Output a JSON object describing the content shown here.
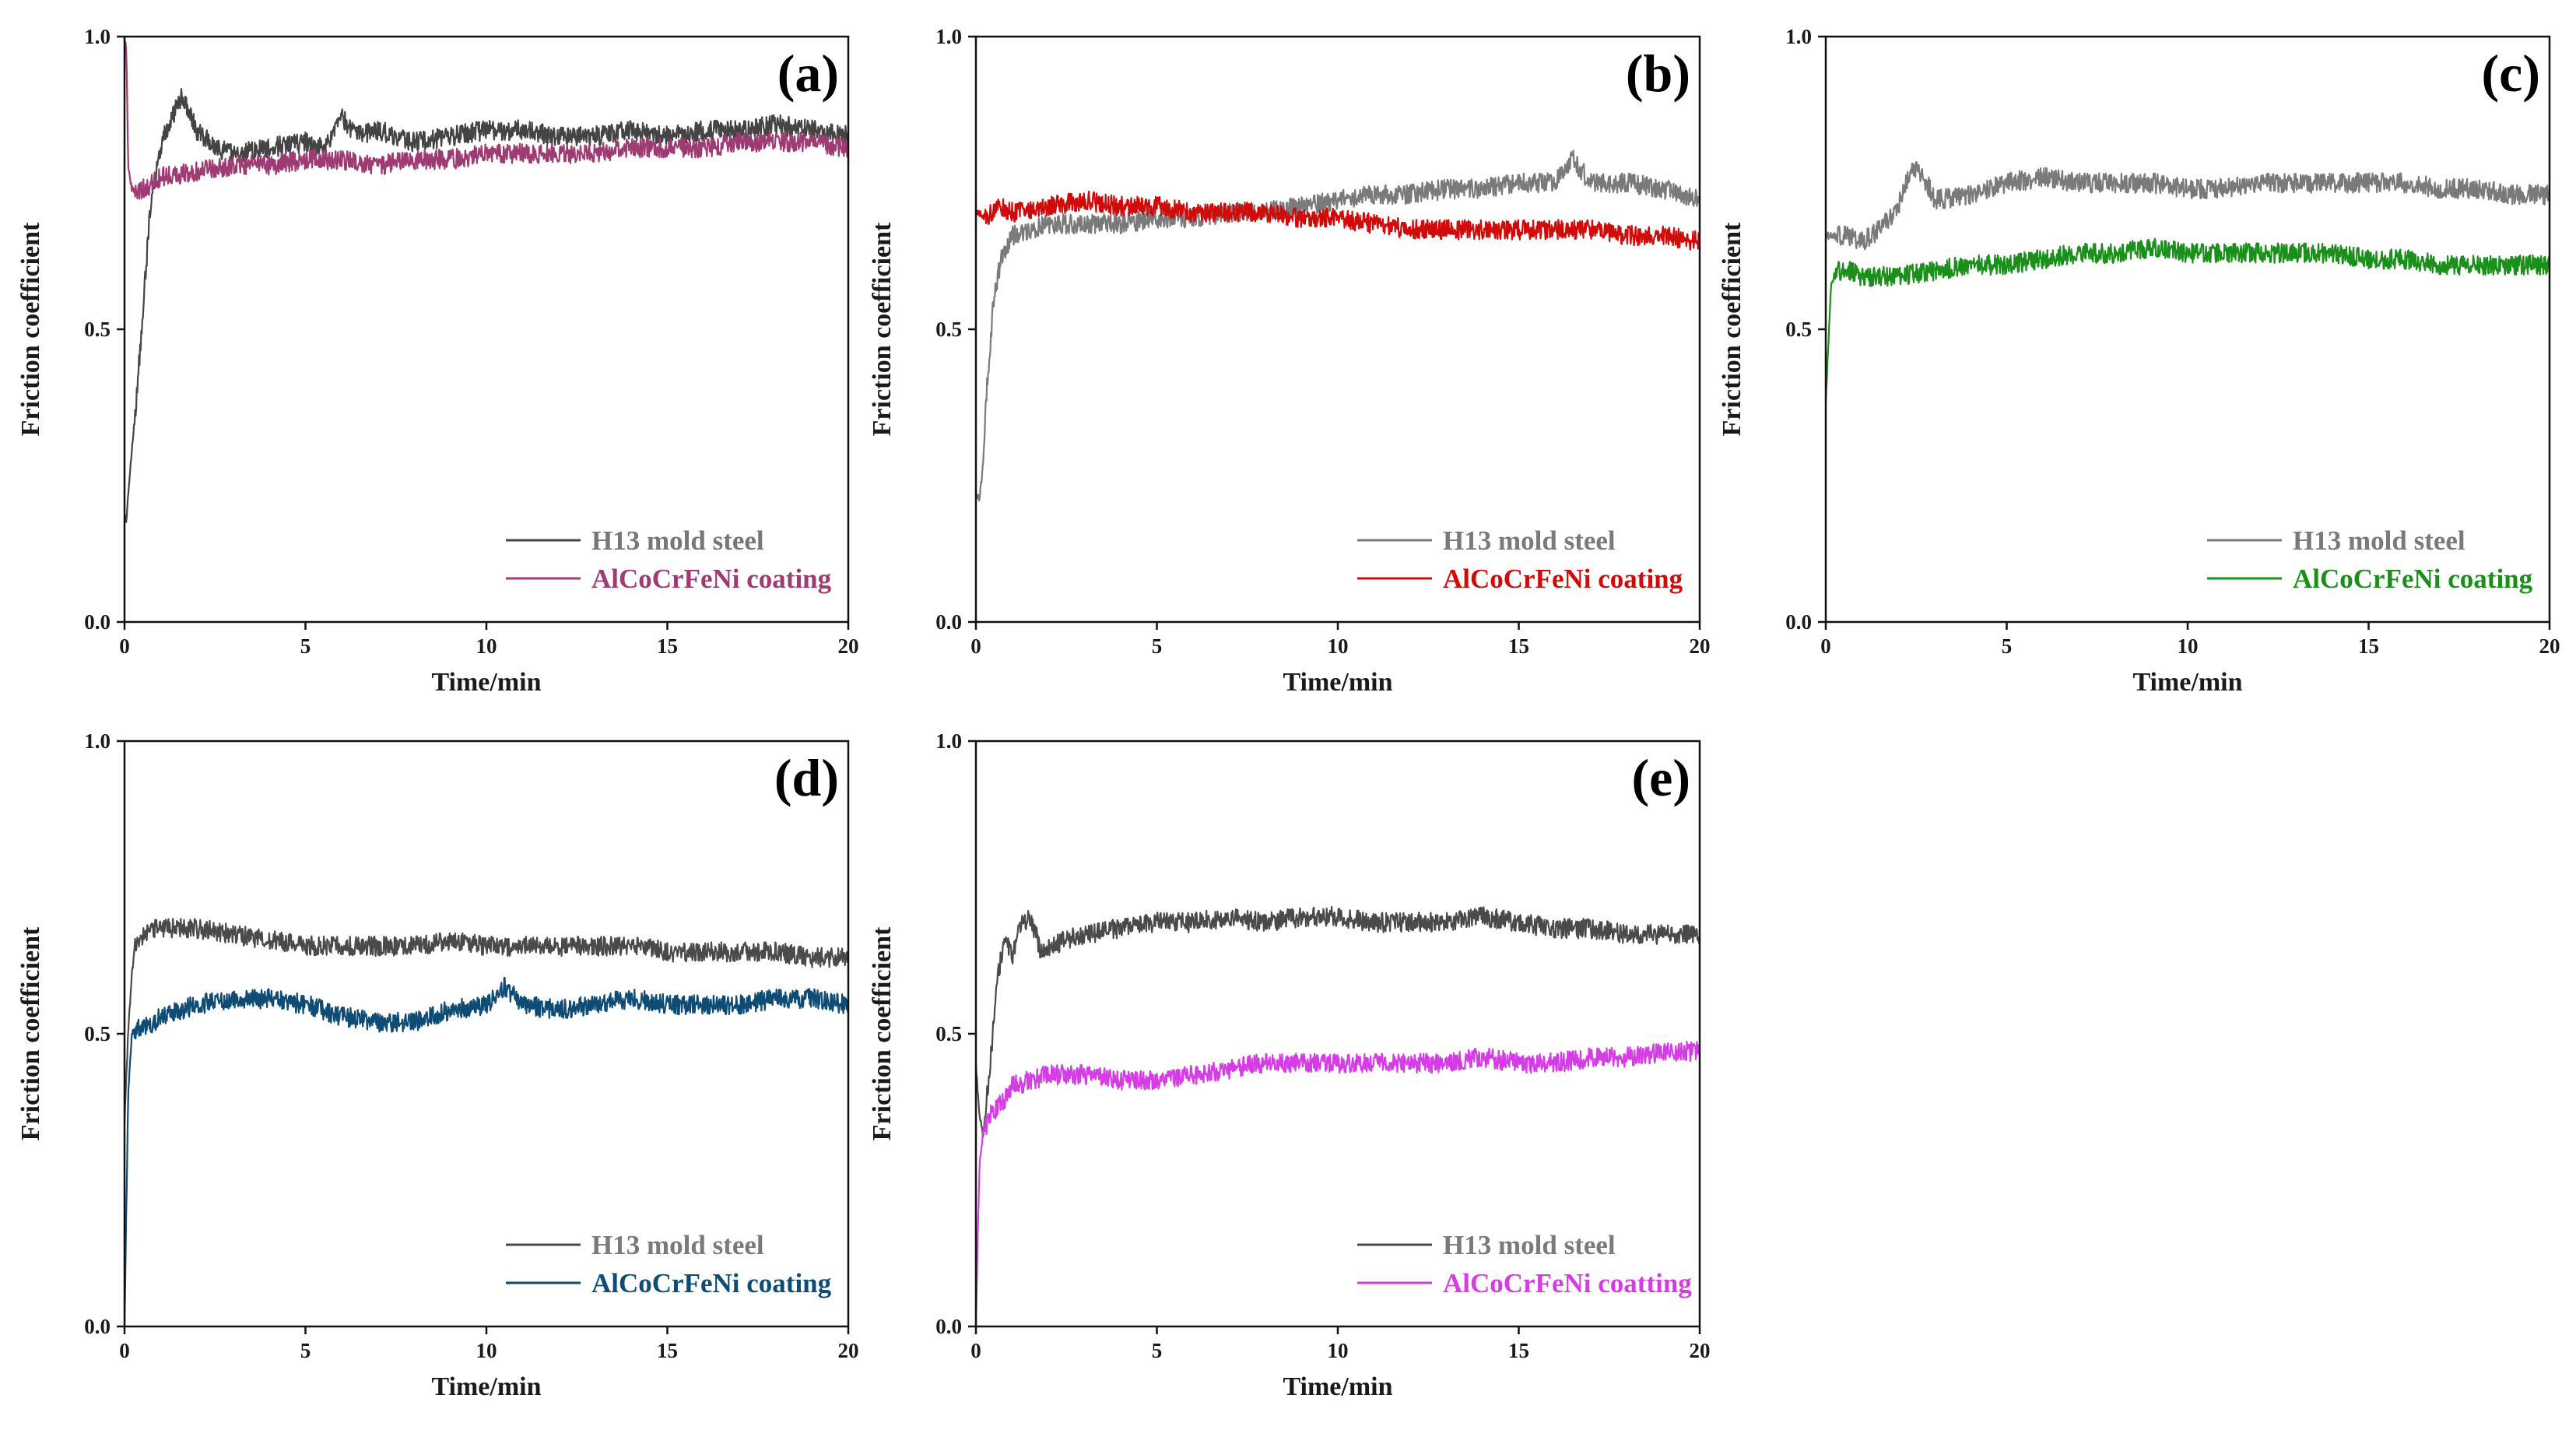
{
  "figure": {
    "chart_data": [
      {
        "type": "line",
        "panel_label": "(a)",
        "xlabel": "Time/min",
        "ylabel": "Friction coefficient",
        "xlim": [
          0,
          20
        ],
        "ylim": [
          0.0,
          1.0
        ],
        "x_ticks": [
          "0",
          "5",
          "10",
          "15",
          "20"
        ],
        "y_ticks": [
          "0.0",
          "0.5",
          "1.0"
        ],
        "legend_position": "bottom-right",
        "series": [
          {
            "name": "H13 mold steel",
            "color": "#444444",
            "label_color": "#777777",
            "x": [
              0,
              0.05,
              0.15,
              0.3,
              0.5,
              0.7,
              0.9,
              1.1,
              1.3,
              1.6,
              1.8,
              2.0,
              2.5,
              3,
              4,
              5,
              5.5,
              6,
              6.5,
              7,
              8,
              9,
              10,
              11,
              12,
              13,
              14,
              15,
              16,
              17,
              18,
              19,
              20
            ],
            "values": [
              0.18,
              0.17,
              0.26,
              0.36,
              0.52,
              0.7,
              0.78,
              0.83,
              0.86,
              0.9,
              0.87,
              0.84,
              0.81,
              0.8,
              0.81,
              0.82,
              0.81,
              0.86,
              0.83,
              0.84,
              0.82,
              0.83,
              0.84,
              0.84,
              0.83,
              0.83,
              0.84,
              0.83,
              0.84,
              0.84,
              0.85,
              0.84,
              0.83
            ]
          },
          {
            "name": "AlCoCrFeNi coating",
            "color": "#9e3b72",
            "label_color": "#9e3b72",
            "x": [
              0,
              0.05,
              0.1,
              0.2,
              0.3,
              0.5,
              0.8,
              1,
              2,
              3,
              4,
              5,
              6,
              7,
              8,
              9,
              10,
              11,
              12,
              13,
              14,
              15,
              16,
              17,
              18,
              19,
              20
            ],
            "values": [
              1.0,
              0.98,
              0.78,
              0.74,
              0.73,
              0.74,
              0.75,
              0.76,
              0.77,
              0.78,
              0.78,
              0.79,
              0.79,
              0.78,
              0.79,
              0.79,
              0.8,
              0.8,
              0.8,
              0.8,
              0.81,
              0.81,
              0.81,
              0.82,
              0.82,
              0.82,
              0.81
            ]
          }
        ]
      },
      {
        "type": "line",
        "panel_label": "(b)",
        "xlabel": "Time/min",
        "ylabel": "Friction coefficient",
        "xlim": [
          0,
          20
        ],
        "ylim": [
          0.0,
          1.0
        ],
        "x_ticks": [
          "0",
          "5",
          "10",
          "15",
          "20"
        ],
        "y_ticks": [
          "0.0",
          "0.5",
          "1.0"
        ],
        "legend_position": "bottom-right",
        "series": [
          {
            "name": "H13 mold steel",
            "color": "#7a7a7a",
            "label_color": "#7a7a7a",
            "x": [
              0,
              0.1,
              0.2,
              0.3,
              0.4,
              0.5,
              0.7,
              1,
              1.5,
              2,
              3,
              4,
              5,
              6,
              7,
              8,
              9,
              10,
              11,
              12,
              13,
              14,
              15,
              16,
              16.5,
              17,
              18,
              19,
              20
            ],
            "values": [
              0.22,
              0.21,
              0.27,
              0.4,
              0.48,
              0.56,
              0.62,
              0.66,
              0.67,
              0.68,
              0.68,
              0.68,
              0.69,
              0.69,
              0.7,
              0.7,
              0.71,
              0.72,
              0.73,
              0.73,
              0.74,
              0.74,
              0.75,
              0.75,
              0.79,
              0.75,
              0.75,
              0.74,
              0.72
            ]
          },
          {
            "name": "AlCoCrFeNi coating",
            "color": "#d10a0a",
            "label_color": "#d10a0a",
            "x": [
              0,
              0.3,
              0.6,
              1,
              2,
              3,
              4,
              5,
              6,
              7,
              8,
              9,
              10,
              11,
              12,
              13,
              14,
              15,
              16,
              17,
              18,
              19,
              20
            ],
            "values": [
              0.7,
              0.69,
              0.71,
              0.7,
              0.71,
              0.72,
              0.71,
              0.71,
              0.7,
              0.7,
              0.7,
              0.69,
              0.69,
              0.68,
              0.67,
              0.67,
              0.67,
              0.67,
              0.67,
              0.67,
              0.66,
              0.66,
              0.65
            ]
          }
        ]
      },
      {
        "type": "line",
        "panel_label": "(c)",
        "xlabel": "Time/min",
        "ylabel": "Friction coefficient",
        "xlim": [
          0,
          20
        ],
        "ylim": [
          0.0,
          1.0
        ],
        "x_ticks": [
          "0",
          "5",
          "10",
          "15",
          "20"
        ],
        "y_ticks": [
          "0.0",
          "0.5",
          "1.0"
        ],
        "legend_position": "bottom-right",
        "series": [
          {
            "name": "H13 mold steel",
            "color": "#7a7a7a",
            "label_color": "#7a7a7a",
            "x": [
              0,
              0.5,
              1,
              1.5,
              2,
              2.4,
              2.8,
              3,
              4,
              5,
              6,
              7,
              8,
              9,
              10,
              11,
              12,
              13,
              14,
              15,
              16,
              17,
              18,
              19,
              20
            ],
            "values": [
              0.66,
              0.66,
              0.65,
              0.67,
              0.71,
              0.78,
              0.75,
              0.72,
              0.73,
              0.75,
              0.76,
              0.75,
              0.75,
              0.75,
              0.74,
              0.74,
              0.75,
              0.75,
              0.75,
              0.75,
              0.75,
              0.74,
              0.74,
              0.73,
              0.73
            ]
          },
          {
            "name": "AlCoCrFeNi coating",
            "color": "#1a8f1a",
            "label_color": "#1a8f1a",
            "x": [
              0,
              0.05,
              0.15,
              0.3,
              0.6,
              1,
              2,
              3,
              4,
              5,
              6,
              7,
              8,
              9,
              10,
              11,
              12,
              13,
              14,
              15,
              16,
              17,
              18,
              19,
              20
            ],
            "values": [
              0.37,
              0.45,
              0.58,
              0.6,
              0.6,
              0.59,
              0.59,
              0.6,
              0.61,
              0.61,
              0.62,
              0.63,
              0.63,
              0.64,
              0.63,
              0.63,
              0.63,
              0.63,
              0.63,
              0.62,
              0.62,
              0.61,
              0.61,
              0.61,
              0.61
            ]
          }
        ]
      },
      {
        "type": "line",
        "panel_label": "(d)",
        "xlabel": "Time/min",
        "ylabel": "Friction coefficient",
        "xlim": [
          0,
          20
        ],
        "ylim": [
          0.0,
          1.0
        ],
        "x_ticks": [
          "0",
          "5",
          "10",
          "15",
          "20"
        ],
        "y_ticks": [
          "0.0",
          "0.5",
          "1.0"
        ],
        "legend_position": "bottom-right",
        "series": [
          {
            "name": "H13 mold steel",
            "color": "#4a4a4a",
            "label_color": "#7a7a7a",
            "x": [
              0,
              0.1,
              0.2,
              0.3,
              0.5,
              0.8,
              1,
              2,
              3,
              4,
              5,
              6,
              7,
              8,
              9,
              10,
              11,
              12,
              13,
              14,
              15,
              16,
              17,
              18,
              19,
              20
            ],
            "values": [
              0.35,
              0.5,
              0.6,
              0.65,
              0.67,
              0.68,
              0.68,
              0.68,
              0.67,
              0.66,
              0.65,
              0.65,
              0.65,
              0.65,
              0.66,
              0.65,
              0.65,
              0.65,
              0.65,
              0.65,
              0.64,
              0.64,
              0.64,
              0.64,
              0.63,
              0.63
            ]
          },
          {
            "name": "AlCoCrFeNi coating",
            "color": "#0f4c75",
            "label_color": "#0f4c75",
            "x": [
              0,
              0.05,
              0.1,
              0.2,
              0.4,
              0.8,
              1,
              2,
              3,
              4,
              5,
              6,
              7,
              8,
              9,
              10,
              10.5,
              11,
              12,
              13,
              14,
              15,
              16,
              17,
              18,
              19,
              20
            ],
            "values": [
              0.0,
              0.2,
              0.4,
              0.5,
              0.51,
              0.52,
              0.53,
              0.55,
              0.56,
              0.56,
              0.55,
              0.53,
              0.52,
              0.52,
              0.54,
              0.55,
              0.58,
              0.55,
              0.54,
              0.55,
              0.56,
              0.55,
              0.55,
              0.55,
              0.56,
              0.56,
              0.55
            ]
          }
        ]
      },
      {
        "type": "line",
        "panel_label": "(e)",
        "xlabel": "Time/min",
        "ylabel": "Friction coefficient",
        "xlim": [
          0,
          20
        ],
        "ylim": [
          0.0,
          1.0
        ],
        "x_ticks": [
          "0",
          "5",
          "10",
          "15",
          "20"
        ],
        "y_ticks": [
          "0.0",
          "0.5",
          "1.0"
        ],
        "legend_position": "bottom-right",
        "series": [
          {
            "name": "H13 mold steel",
            "color": "#4a4a4a",
            "label_color": "#7a7a7a",
            "x": [
              0,
              0.1,
              0.2,
              0.4,
              0.6,
              0.8,
              1,
              1.2,
              1.5,
              1.8,
              2,
              3,
              4,
              5,
              6,
              7,
              8,
              9,
              10,
              11,
              12,
              13,
              14,
              15,
              16,
              17,
              18,
              19,
              20
            ],
            "values": [
              0.45,
              0.36,
              0.33,
              0.45,
              0.6,
              0.66,
              0.63,
              0.68,
              0.7,
              0.64,
              0.65,
              0.67,
              0.68,
              0.69,
              0.69,
              0.7,
              0.69,
              0.7,
              0.7,
              0.69,
              0.69,
              0.69,
              0.7,
              0.69,
              0.68,
              0.68,
              0.67,
              0.67,
              0.67
            ]
          },
          {
            "name": "AlCoCrFeNi coatting",
            "color": "#d63ce6",
            "label_color": "#d63ce6",
            "x": [
              0,
              0.05,
              0.1,
              0.2,
              0.4,
              0.8,
              1,
              2,
              3,
              4,
              5,
              6,
              7,
              8,
              9,
              10,
              11,
              12,
              13,
              14,
              15,
              16,
              17,
              18,
              19,
              20
            ],
            "values": [
              0.0,
              0.15,
              0.28,
              0.33,
              0.36,
              0.39,
              0.41,
              0.43,
              0.43,
              0.42,
              0.42,
              0.43,
              0.44,
              0.45,
              0.45,
              0.45,
              0.45,
              0.45,
              0.45,
              0.46,
              0.45,
              0.45,
              0.46,
              0.46,
              0.47,
              0.47
            ]
          }
        ]
      }
    ]
  }
}
